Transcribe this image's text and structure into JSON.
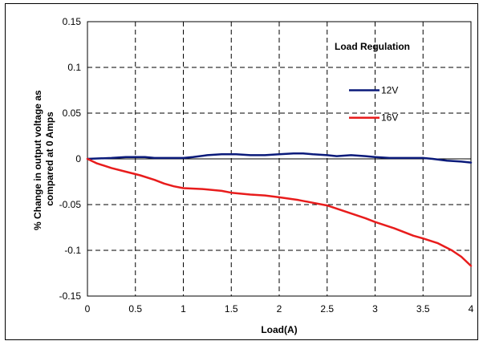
{
  "chart_data": {
    "type": "line",
    "title": "Load Regulation",
    "xlabel": "Load(A)",
    "ylabel_lines": [
      "% Change in output voltage as",
      "compared at 0 Amps"
    ],
    "xlim": [
      0,
      4
    ],
    "ylim": [
      -0.15,
      0.15
    ],
    "x_ticks": [
      0,
      0.5,
      1,
      1.5,
      2,
      2.5,
      3,
      3.5,
      4
    ],
    "y_ticks": [
      0.15,
      0.1,
      0.05,
      0,
      -0.05,
      -0.1,
      -0.15
    ],
    "x_tick_labels": [
      "0",
      "0.5",
      "1",
      "1.5",
      "2",
      "2.5",
      "3",
      "3.5",
      "4"
    ],
    "y_tick_labels": [
      "0.15",
      "0.1",
      "0.05",
      "0",
      "-0.05",
      "-0.1",
      "-0.15"
    ],
    "grid": true,
    "legend_position": "top-right",
    "series": [
      {
        "name": "12V",
        "color": "#0a1a7a",
        "x": [
          0,
          0.25,
          0.4,
          0.6,
          0.7,
          0.8,
          0.9,
          1.0,
          1.1,
          1.25,
          1.4,
          1.55,
          1.7,
          1.85,
          2.0,
          2.15,
          2.25,
          2.35,
          2.5,
          2.6,
          2.75,
          2.9,
          3.0,
          3.15,
          3.3,
          3.5,
          3.6,
          3.75,
          3.9,
          4.0
        ],
        "y": [
          0,
          0.001,
          0.002,
          0.002,
          0.001,
          0.001,
          0.001,
          0.001,
          0.002,
          0.004,
          0.005,
          0.005,
          0.004,
          0.004,
          0.005,
          0.006,
          0.006,
          0.005,
          0.004,
          0.003,
          0.004,
          0.003,
          0.002,
          0.001,
          0.001,
          0.001,
          0.0,
          -0.002,
          -0.003,
          -0.004
        ]
      },
      {
        "name": "16V",
        "color": "#e81c1c",
        "x": [
          0,
          0.1,
          0.25,
          0.4,
          0.55,
          0.7,
          0.8,
          0.9,
          1.0,
          1.2,
          1.4,
          1.5,
          1.7,
          1.85,
          2.0,
          2.2,
          2.35,
          2.5,
          2.7,
          2.9,
          3.0,
          3.2,
          3.4,
          3.5,
          3.65,
          3.8,
          3.9,
          4.0
        ],
        "y": [
          0,
          -0.005,
          -0.01,
          -0.014,
          -0.018,
          -0.023,
          -0.027,
          -0.03,
          -0.032,
          -0.033,
          -0.035,
          -0.037,
          -0.039,
          -0.04,
          -0.042,
          -0.045,
          -0.048,
          -0.051,
          -0.058,
          -0.065,
          -0.069,
          -0.076,
          -0.084,
          -0.087,
          -0.092,
          -0.1,
          -0.107,
          -0.117
        ]
      }
    ]
  }
}
